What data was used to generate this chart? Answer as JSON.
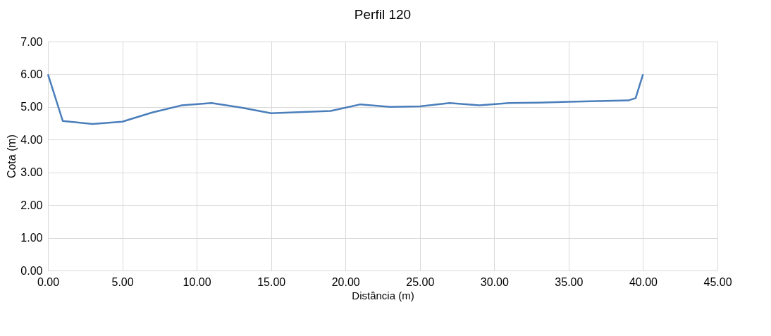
{
  "chart_data": {
    "type": "line",
    "title": "Perfil 120",
    "xlabel": "Distância (m)",
    "ylabel": "Cota (m)",
    "x": [
      0,
      1,
      3,
      5,
      7,
      9,
      11,
      13,
      15,
      19,
      21,
      23,
      25,
      27,
      29,
      31,
      33,
      35,
      39,
      39.5,
      40
    ],
    "series": [
      {
        "color": "#4a7ebb",
        "values": [
          6.0,
          4.57,
          4.48,
          4.55,
          4.83,
          5.05,
          5.12,
          4.98,
          4.81,
          4.88,
          5.08,
          5.0,
          5.02,
          5.12,
          5.05,
          5.12,
          5.13,
          5.16,
          5.2,
          5.27,
          6.0
        ]
      }
    ],
    "xlim": [
      0,
      45
    ],
    "xticks": [
      {
        "value": 0,
        "label": "0.00"
      },
      {
        "value": 5,
        "label": "5.00"
      },
      {
        "value": 10,
        "label": "10.00"
      },
      {
        "value": 15,
        "label": "15.00"
      },
      {
        "value": 20,
        "label": "20.00"
      },
      {
        "value": 25,
        "label": "25.00"
      },
      {
        "value": 30,
        "label": "30.00"
      },
      {
        "value": 35,
        "label": "35.00"
      },
      {
        "value": 40,
        "label": "40.00"
      },
      {
        "value": 45,
        "label": "45.00"
      }
    ],
    "ylim": [
      0,
      7
    ],
    "yticks": [
      {
        "value": 0,
        "label": "0.00"
      },
      {
        "value": 1,
        "label": "1.00"
      },
      {
        "value": 2,
        "label": "2.00"
      },
      {
        "value": 3,
        "label": "3.00"
      },
      {
        "value": 4,
        "label": "4.00"
      },
      {
        "value": 5,
        "label": "5.00"
      },
      {
        "value": 6,
        "label": "6.00"
      },
      {
        "value": 7,
        "label": "7.00"
      }
    ],
    "grid": true,
    "marker": "none",
    "line_style": "solid"
  }
}
